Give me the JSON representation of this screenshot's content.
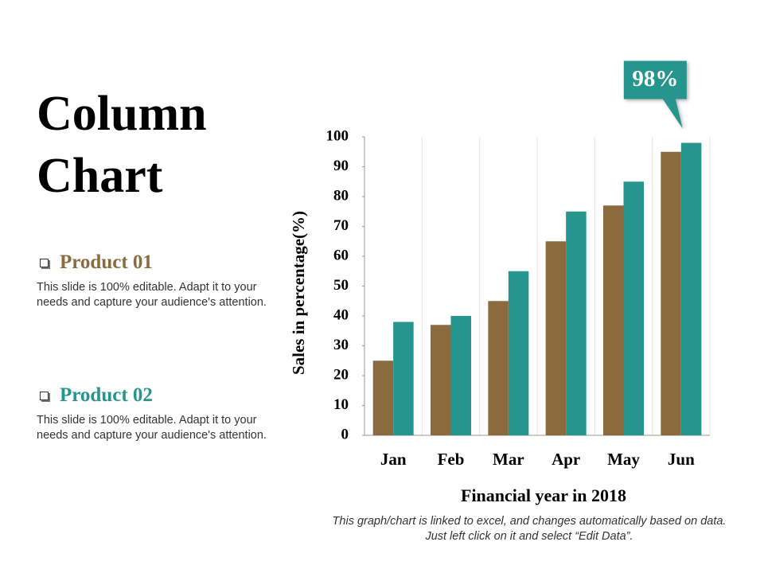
{
  "chart_data": {
    "type": "bar",
    "title": "Column Chart",
    "categories": [
      "Jan",
      "Feb",
      "Mar",
      "Apr",
      "May",
      "Jun"
    ],
    "series": [
      {
        "name": "Product 01",
        "color": "#8b6a3e",
        "values": [
          25,
          37,
          45,
          65,
          77,
          95
        ],
        "description": "This slide is 100% editable. Adapt it to your needs and capture your audience's attention."
      },
      {
        "name": "Product 02",
        "color": "#26958e",
        "values": [
          38,
          40,
          55,
          75,
          85,
          98
        ],
        "value_labels": [
          null,
          null,
          null,
          null,
          null,
          "98%"
        ],
        "description": "This slide is 100% editable. Adapt it to your needs and capture your audience's attention."
      }
    ],
    "ylim": [
      0,
      100
    ],
    "yticks": [
      0,
      10,
      20,
      30,
      40,
      50,
      60,
      70,
      80,
      90,
      100
    ],
    "ylabel": "Sales in percentage(%)",
    "xlabel": "Financial year in 2018",
    "footnote": "This graph/chart is linked to excel, and changes automatically based on data. Just left click on it and select “Edit Data”."
  }
}
